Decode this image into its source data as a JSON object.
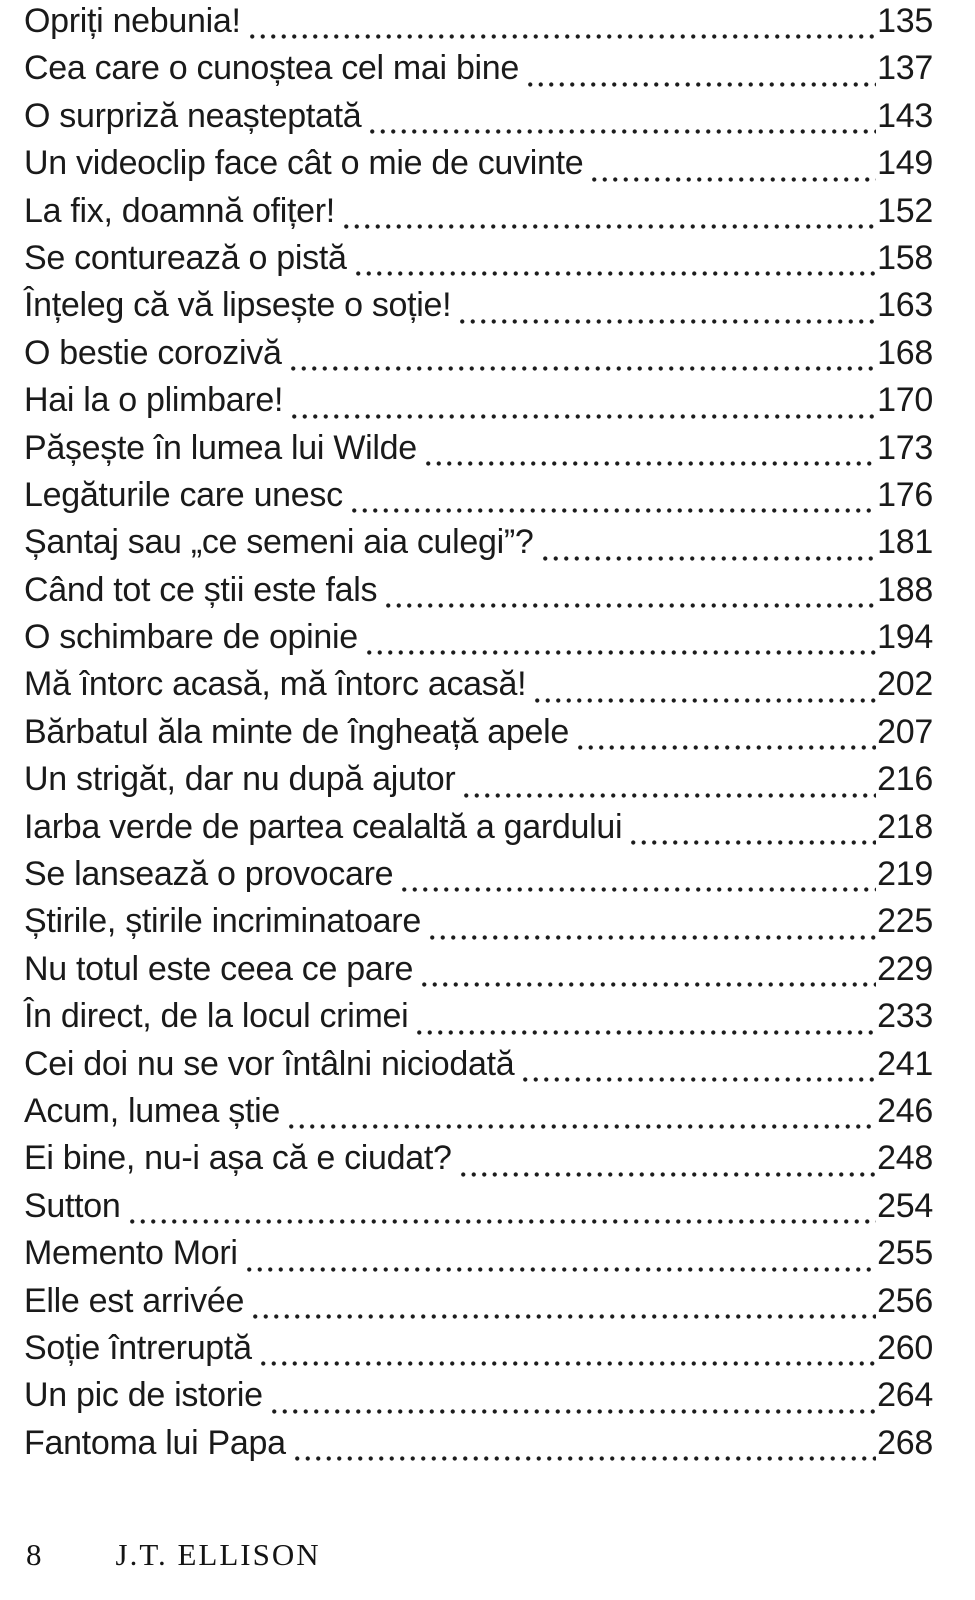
{
  "page": {
    "background_color": "#ffffff",
    "text_color": "#1a1a1a"
  },
  "toc": {
    "entries": [
      {
        "title": "Opriți nebunia!",
        "page": "135"
      },
      {
        "title": "Cea care o cunoștea cel mai bine",
        "page": "137"
      },
      {
        "title": "O surpriză neașteptată",
        "page": "143"
      },
      {
        "title": "Un videoclip face cât o mie de cuvinte",
        "page": "149"
      },
      {
        "title": "La fix, doamnă ofițer!",
        "page": "152"
      },
      {
        "title": "Se conturează o pistă",
        "page": "158"
      },
      {
        "title": "Înțeleg că vă lipsește o soție!",
        "page": "163"
      },
      {
        "title": "O bestie corozivă",
        "page": "168"
      },
      {
        "title": "Hai la o plimbare!",
        "page": "170"
      },
      {
        "title": "Pășește în lumea lui Wilde",
        "page": "173"
      },
      {
        "title": "Legăturile care unesc",
        "page": "176"
      },
      {
        "title": "Șantaj sau „ce semeni aia culegi”?",
        "page": "181"
      },
      {
        "title": "Când tot ce știi este fals",
        "page": "188"
      },
      {
        "title": "O schimbare de opinie",
        "page": "194"
      },
      {
        "title": "Mă întorc acasă, mă întorc acasă!",
        "page": "202"
      },
      {
        "title": "Bărbatul ăla minte de îngheață apele",
        "page": "207"
      },
      {
        "title": "Un strigăt, dar nu după ajutor",
        "page": "216"
      },
      {
        "title": "Iarba verde de partea cealaltă a gardului",
        "page": "218"
      },
      {
        "title": "Se lansează o provocare",
        "page": "219"
      },
      {
        "title": "Știrile, știrile incriminatoare",
        "page": "225"
      },
      {
        "title": "Nu totul este ceea ce pare",
        "page": "229"
      },
      {
        "title": "În direct, de la locul crimei",
        "page": "233"
      },
      {
        "title": "Cei doi nu se vor întâlni niciodată",
        "page": "241"
      },
      {
        "title": "Acum, lumea știe",
        "page": "246"
      },
      {
        "title": "Ei bine, nu-i așa că e ciudat?",
        "page": "248"
      },
      {
        "title": "Sutton",
        "page": "254"
      },
      {
        "title": "Memento Mori",
        "page": "255"
      },
      {
        "title": "Elle est arrivée",
        "page": "256"
      },
      {
        "title": "Soție întreruptă",
        "page": "260"
      },
      {
        "title": "Un pic de istorie",
        "page": "264"
      },
      {
        "title": "Fantoma lui Papa",
        "page": "268"
      }
    ]
  },
  "footer": {
    "page_number": "8",
    "running_title": "J.T. ELLISON"
  }
}
